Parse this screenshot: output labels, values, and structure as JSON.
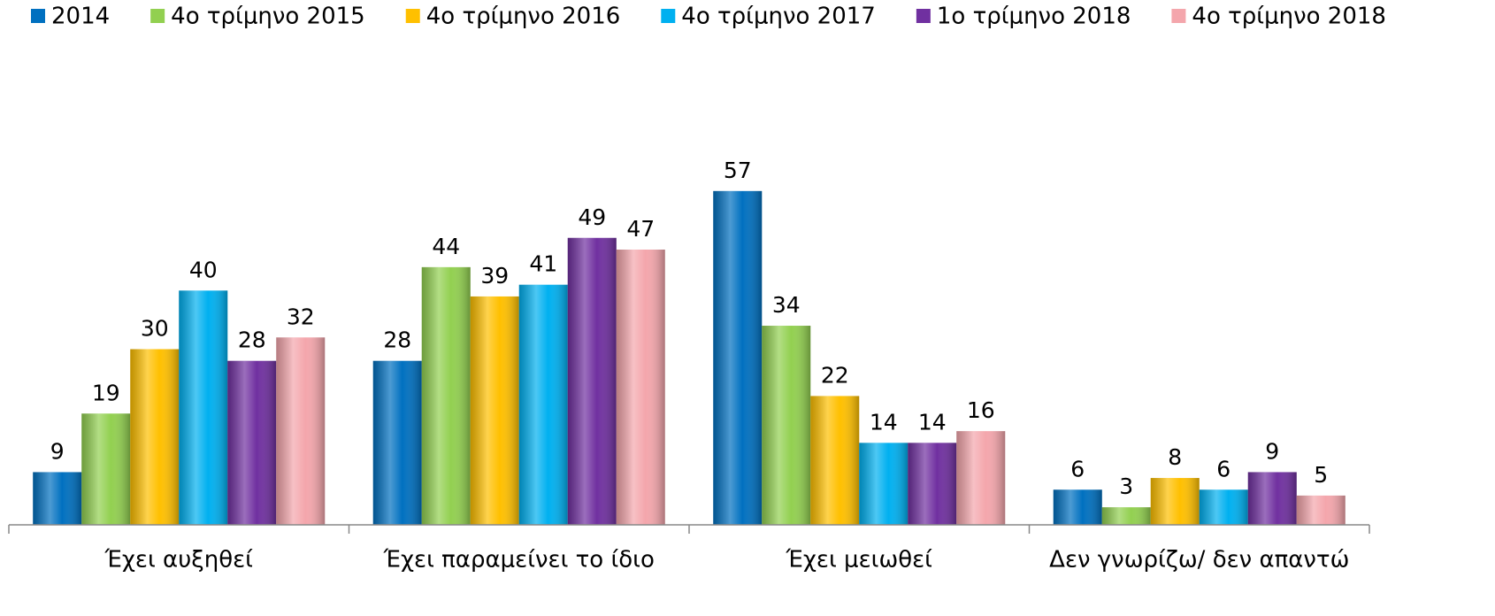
{
  "chart_data": {
    "type": "bar",
    "categories": [
      "Έχει αυξηθεί",
      "Έχει παραμείνει το ίδιο",
      "Έχει μειωθεί",
      "Δεν γνωρίζω/ δεν απαντώ"
    ],
    "series": [
      {
        "name": "2014",
        "color": "#0070c0",
        "values": [
          9,
          28,
          57,
          6
        ]
      },
      {
        "name": "4ο τρίμηνο 2015",
        "color": "#92d050",
        "values": [
          19,
          44,
          34,
          3
        ]
      },
      {
        "name": "4ο τρίμηνο 2016",
        "color": "#ffc000",
        "values": [
          30,
          39,
          22,
          8
        ]
      },
      {
        "name": "4ο τρίμηνο 2017",
        "color": "#00b0f0",
        "values": [
          40,
          41,
          14,
          6
        ]
      },
      {
        "name": "1ο τρίμηνο 2018",
        "color": "#7030a0",
        "values": [
          28,
          49,
          14,
          9
        ]
      },
      {
        "name": "4ο τρίμηνο 2018",
        "color": "#f4a6ac",
        "values": [
          32,
          47,
          16,
          5
        ]
      }
    ],
    "ylim": [
      0,
      60
    ],
    "legend": "top"
  }
}
